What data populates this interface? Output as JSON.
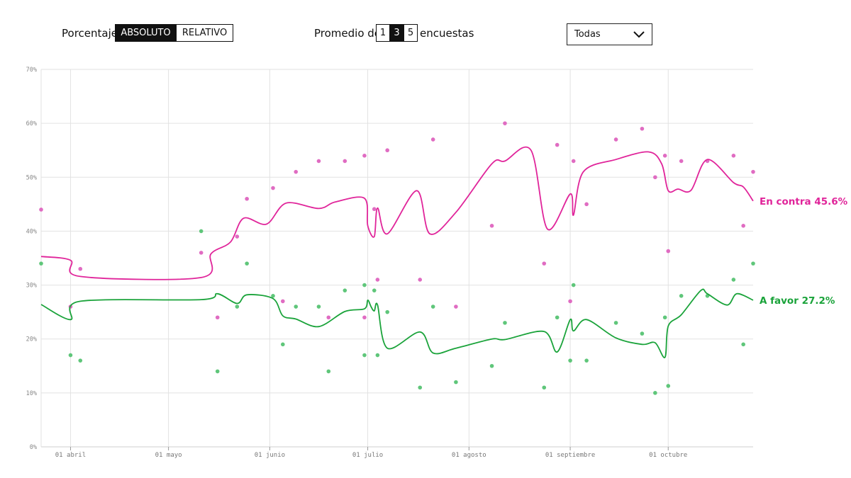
{
  "controls": {
    "percentage_label": "Porcentaje",
    "percentage_options": [
      "ABSOLUTO",
      "RELATIVO"
    ],
    "percentage_selected": "ABSOLUTO",
    "average_label_before": "Promedio de",
    "average_options": [
      "1",
      "3",
      "5"
    ],
    "average_selected": "3",
    "average_label_after": "encuestas",
    "filter_value": "Todas"
  },
  "colors": {
    "contra": "#e0249a",
    "favor": "#1aa33a",
    "contra_dot": "#e06cc2",
    "favor_dot": "#5fc67a",
    "grid": "#e2e2e2"
  },
  "chart_data": {
    "type": "line",
    "y_ticks": [
      "0%",
      "10%",
      "20%",
      "30%",
      "40%",
      "50%",
      "60%",
      "70%"
    ],
    "ylim": [
      0,
      70
    ],
    "x_ticks": [
      {
        "label": "01 abril",
        "date": "04-01"
      },
      {
        "label": "01 mayo",
        "date": "05-01"
      },
      {
        "label": "01 junio",
        "date": "06-01"
      },
      {
        "label": "01 julio",
        "date": "07-01"
      },
      {
        "label": "01 agosto",
        "date": "08-01"
      },
      {
        "label": "01 septiembre",
        "date": "09-01"
      },
      {
        "label": "01 octubre",
        "date": "10-01"
      }
    ],
    "x_range": [
      "03-23",
      "10-27"
    ],
    "end_labels": {
      "contra": "En contra 45.6%",
      "favor": "A favor 27.2%"
    },
    "series": [
      {
        "key": "contra",
        "line": [
          [
            "03-23",
            35.3
          ],
          [
            "04-01",
            34.6
          ],
          [
            "04-04",
            31.6
          ],
          [
            "05-11",
            31.4
          ],
          [
            "05-14",
            35.8
          ],
          [
            "05-20",
            38.0
          ],
          [
            "05-24",
            42.4
          ],
          [
            "05-31",
            41.3
          ],
          [
            "06-06",
            45.2
          ],
          [
            "06-16",
            44.2
          ],
          [
            "06-21",
            45.4
          ],
          [
            "06-30",
            46.1
          ],
          [
            "07-01",
            41.0
          ],
          [
            "07-03",
            39.0
          ],
          [
            "07-04",
            44.3
          ],
          [
            "07-07",
            39.5
          ],
          [
            "07-16",
            47.5
          ],
          [
            "07-20",
            39.5
          ],
          [
            "07-28",
            43.5
          ],
          [
            "08-08",
            52.5
          ],
          [
            "08-12",
            53.0
          ],
          [
            "08-20",
            55.0
          ],
          [
            "08-25",
            40.4
          ],
          [
            "09-01",
            46.9
          ],
          [
            "09-02",
            43.0
          ],
          [
            "09-05",
            51.0
          ],
          [
            "09-15",
            53.3
          ],
          [
            "09-25",
            54.7
          ],
          [
            "09-29",
            52.5
          ],
          [
            "10-01",
            47.5
          ],
          [
            "10-04",
            47.8
          ],
          [
            "10-08",
            47.6
          ],
          [
            "10-13",
            53.3
          ],
          [
            "10-21",
            49.0
          ],
          [
            "10-24",
            48.2
          ],
          [
            "10-27",
            45.6
          ]
        ],
        "points": [
          [
            "03-23",
            44
          ],
          [
            "04-01",
            26
          ],
          [
            "04-04",
            33
          ],
          [
            "05-11",
            36
          ],
          [
            "05-16",
            24
          ],
          [
            "05-22",
            39
          ],
          [
            "05-25",
            46
          ],
          [
            "06-02",
            48
          ],
          [
            "06-05",
            27
          ],
          [
            "06-09",
            51
          ],
          [
            "06-16",
            53
          ],
          [
            "06-19",
            24
          ],
          [
            "06-24",
            53
          ],
          [
            "06-30",
            54
          ],
          [
            "06-30",
            24
          ],
          [
            "07-03",
            44.1
          ],
          [
            "07-04",
            31
          ],
          [
            "07-07",
            55
          ],
          [
            "07-17",
            31
          ],
          [
            "07-21",
            57
          ],
          [
            "07-28",
            26
          ],
          [
            "08-08",
            41
          ],
          [
            "08-12",
            60
          ],
          [
            "08-24",
            34
          ],
          [
            "08-28",
            56
          ],
          [
            "09-01",
            27
          ],
          [
            "09-02",
            53
          ],
          [
            "09-06",
            45
          ],
          [
            "09-15",
            57
          ],
          [
            "09-23",
            59
          ],
          [
            "09-27",
            50
          ],
          [
            "09-30",
            54
          ],
          [
            "10-01",
            36.3
          ],
          [
            "10-05",
            53
          ],
          [
            "10-13",
            53
          ],
          [
            "10-21",
            54
          ],
          [
            "10-24",
            41
          ],
          [
            "10-27",
            51
          ]
        ]
      },
      {
        "key": "favor",
        "line": [
          [
            "03-23",
            26.4
          ],
          [
            "04-01",
            23.6
          ],
          [
            "04-04",
            27.0
          ],
          [
            "05-11",
            27.3
          ],
          [
            "05-16",
            28.4
          ],
          [
            "05-22",
            26.6
          ],
          [
            "05-25",
            28.2
          ],
          [
            "06-02",
            27.5
          ],
          [
            "06-05",
            24.3
          ],
          [
            "06-09",
            23.7
          ],
          [
            "06-16",
            22.3
          ],
          [
            "06-24",
            25.1
          ],
          [
            "06-30",
            25.6
          ],
          [
            "07-01",
            27.2
          ],
          [
            "07-02",
            26.0
          ],
          [
            "07-03",
            25.2
          ],
          [
            "07-04",
            26.3
          ],
          [
            "07-07",
            18.3
          ],
          [
            "07-17",
            21.3
          ],
          [
            "07-21",
            17.4
          ],
          [
            "07-28",
            18.3
          ],
          [
            "08-08",
            20.0
          ],
          [
            "08-12",
            19.9
          ],
          [
            "08-24",
            21.4
          ],
          [
            "08-28",
            17.6
          ],
          [
            "09-01",
            23.6
          ],
          [
            "09-02",
            21.5
          ],
          [
            "09-06",
            23.6
          ],
          [
            "09-15",
            20.2
          ],
          [
            "09-23",
            19.0
          ],
          [
            "09-27",
            19.3
          ],
          [
            "09-30",
            16.6
          ],
          [
            "10-01",
            22.4
          ],
          [
            "10-05",
            24.5
          ],
          [
            "10-11",
            29.0
          ],
          [
            "10-13",
            28.4
          ],
          [
            "10-19",
            26.3
          ],
          [
            "10-22",
            28.4
          ],
          [
            "10-27",
            27.2
          ]
        ],
        "points": [
          [
            "03-23",
            34
          ],
          [
            "04-01",
            17
          ],
          [
            "04-04",
            16
          ],
          [
            "05-11",
            40
          ],
          [
            "05-16",
            14
          ],
          [
            "05-22",
            26
          ],
          [
            "05-25",
            34
          ],
          [
            "06-02",
            28
          ],
          [
            "06-05",
            19
          ],
          [
            "06-09",
            26
          ],
          [
            "06-16",
            26
          ],
          [
            "06-19",
            14
          ],
          [
            "06-24",
            29
          ],
          [
            "06-30",
            30
          ],
          [
            "06-30",
            17
          ],
          [
            "07-03",
            29
          ],
          [
            "07-04",
            17
          ],
          [
            "07-07",
            25
          ],
          [
            "07-17",
            11
          ],
          [
            "07-21",
            26
          ],
          [
            "07-28",
            12
          ],
          [
            "08-08",
            15
          ],
          [
            "08-12",
            23
          ],
          [
            "08-24",
            11
          ],
          [
            "08-28",
            24
          ],
          [
            "09-01",
            16
          ],
          [
            "09-02",
            30
          ],
          [
            "09-06",
            16
          ],
          [
            "09-15",
            23
          ],
          [
            "09-23",
            21
          ],
          [
            "09-27",
            10
          ],
          [
            "09-30",
            24
          ],
          [
            "10-01",
            11.3
          ],
          [
            "10-05",
            28
          ],
          [
            "10-13",
            28
          ],
          [
            "10-21",
            31
          ],
          [
            "10-24",
            19
          ],
          [
            "10-27",
            34
          ]
        ]
      }
    ]
  }
}
